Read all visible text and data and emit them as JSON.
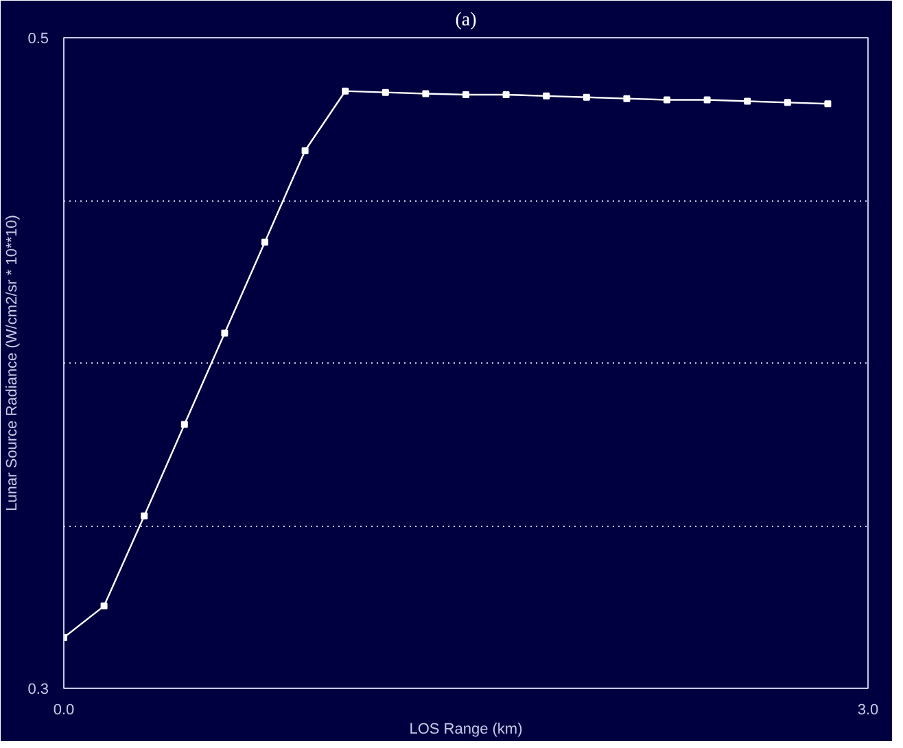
{
  "chart_data": {
    "type": "line",
    "title": "(a)",
    "xlabel": "LOS Range (km)",
    "ylabel": "Lunar Source Radiance (W/cm2/sr * 10**10)",
    "x": [
      0,
      0.15,
      0.3,
      0.45,
      0.6,
      0.75,
      0.9,
      1.05,
      1.2,
      1.35,
      1.5,
      1.65,
      1.8,
      1.95,
      2.1,
      2.25,
      2.4,
      2.55,
      2.7,
      2.85
    ],
    "series": [
      {
        "color": "#ffffff",
        "values": [
          0.3156,
          0.3253,
          0.353,
          0.3811,
          0.4092,
          0.4372,
          0.4653,
          0.4836,
          0.4832,
          0.4828,
          0.4825,
          0.4825,
          0.4821,
          0.4817,
          0.4813,
          0.4809,
          0.4809,
          0.4805,
          0.4801,
          0.4797
        ]
      }
    ],
    "xlim": [
      0,
      3
    ],
    "ylim": [
      0.3,
      0.5
    ],
    "xticks": [
      {
        "value": 0,
        "label": "0.0"
      },
      {
        "value": 3,
        "label": "3.0"
      }
    ],
    "yticks": [
      0.3,
      {
        "value": 0.35,
        "label": null
      },
      {
        "value": 0.4,
        "label": null
      },
      {
        "value": 0.45,
        "label": null
      },
      0.5
    ],
    "grid": "y",
    "marker": "square",
    "line_style": "solid"
  }
}
